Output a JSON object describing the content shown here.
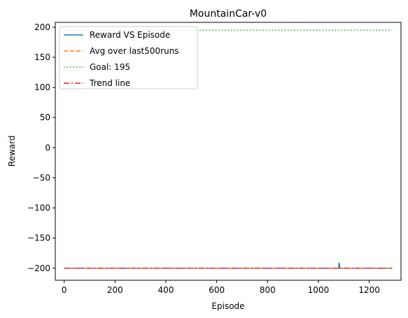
{
  "chart_data": {
    "type": "line",
    "title": "MountainCar-v0",
    "xlabel": "Episode",
    "ylabel": "Reward",
    "xlim": [
      -35,
      1325
    ],
    "ylim": [
      -220,
      208
    ],
    "xticks": [
      0,
      200,
      400,
      600,
      800,
      1000,
      1200
    ],
    "yticks": [
      -200,
      -150,
      -100,
      -50,
      0,
      50,
      100,
      150,
      200
    ],
    "xtick_labels": [
      "0",
      "200",
      "400",
      "600",
      "800",
      "1000",
      "1200"
    ],
    "ytick_labels": [
      "−200",
      "−150",
      "−100",
      "−50",
      "0",
      "50",
      "100",
      "150",
      "200"
    ],
    "grid": false,
    "legend_position": "upper-left",
    "series": [
      {
        "name": "Reward VS Episode",
        "style": "solid",
        "color": "#1f77b4",
        "x": [
          0,
          1080,
          1081,
          1082,
          1083,
          1084,
          1290
        ],
        "y": [
          -200,
          -200,
          -193,
          -191,
          -193,
          -200,
          -200
        ]
      },
      {
        "name": "Avg over last500runs",
        "style": "dashed",
        "color": "#ff7f0e",
        "x": [
          0,
          1290
        ],
        "y": [
          -200,
          -200
        ]
      },
      {
        "name": "Goal: 195",
        "style": "dotted",
        "color": "#2ca02c",
        "x": [
          0,
          1290
        ],
        "y": [
          195,
          195
        ]
      },
      {
        "name": "Trend line",
        "style": "dashdot",
        "color": "#d62728",
        "x": [
          0,
          1290
        ],
        "y": [
          -200,
          -200
        ]
      }
    ]
  }
}
